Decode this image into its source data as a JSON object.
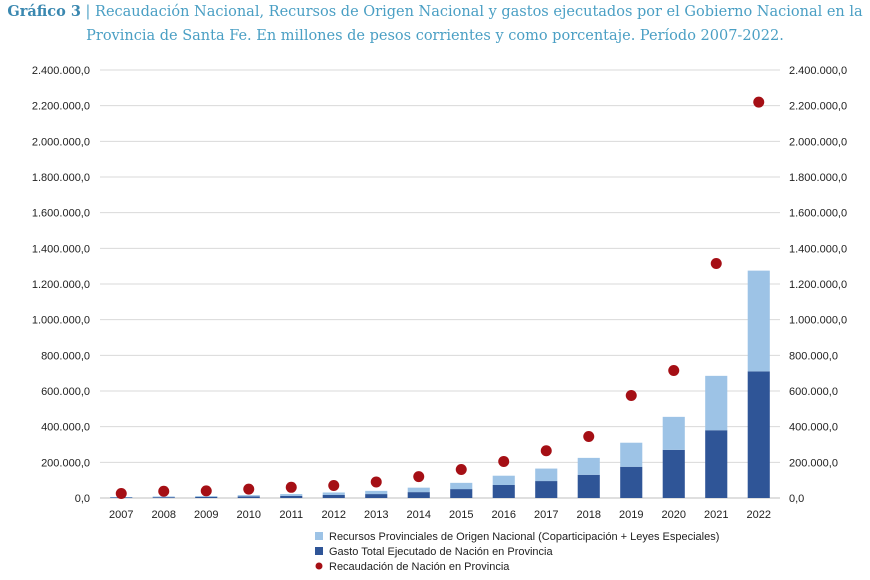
{
  "header": {
    "label": "Gráfico 3",
    "separator": "|",
    "line1": "Recaudación Nacional, Recursos de Origen Nacional y gastos ejecutados por el Gobierno Nacional en la",
    "line2": "Provincia de Santa Fe. En millones de pesos corrientes y como porcentaje. Período 2007-2022."
  },
  "chart_data": {
    "type": "bar",
    "stacked": true,
    "categories": [
      "2007",
      "2008",
      "2009",
      "2010",
      "2011",
      "2012",
      "2013",
      "2014",
      "2015",
      "2016",
      "2017",
      "2018",
      "2019",
      "2020",
      "2021",
      "2022"
    ],
    "ylim": [
      0,
      2400000
    ],
    "yticks": [
      0,
      200000,
      400000,
      600000,
      800000,
      1000000,
      1200000,
      1400000,
      1600000,
      1800000,
      2000000,
      2200000,
      2400000
    ],
    "ytick_labels": [
      "0,0",
      "200.000,0",
      "400.000,0",
      "600.000,0",
      "800.000,0",
      "1.000.000,0",
      "1.200.000,0",
      "1.400.000,0",
      "1.600.000,0",
      "1.800.000,0",
      "2.000.000,0",
      "2.200.000,0",
      "2.400.000,0"
    ],
    "grid": true,
    "legend_position": "bottom",
    "series": [
      {
        "name": "Gasto Total Ejecutado de Nación en Provincia",
        "kind": "bar",
        "color": "#2f5597",
        "values": [
          3000,
          4500,
          6000,
          9000,
          12000,
          17000,
          22000,
          33000,
          50000,
          73000,
          95000,
          130000,
          175000,
          270000,
          380000,
          710000
        ]
      },
      {
        "name": "Recursos Provinciales de Origen Nacional (Coparticipación + Leyes Especiales)",
        "kind": "bar",
        "color": "#9dc3e6",
        "values": [
          2500,
          4000,
          5000,
          7000,
          10000,
          14000,
          18000,
          25000,
          35000,
          52000,
          70000,
          95000,
          135000,
          185000,
          305000,
          565000
        ]
      },
      {
        "name": "Recaudación de Nación en Provincia",
        "kind": "scatter",
        "color": "#a50f15",
        "values": [
          25000,
          38000,
          40000,
          50000,
          60000,
          70000,
          90000,
          120000,
          160000,
          205000,
          265000,
          345000,
          575000,
          715000,
          1315000,
          2220000
        ]
      }
    ]
  }
}
